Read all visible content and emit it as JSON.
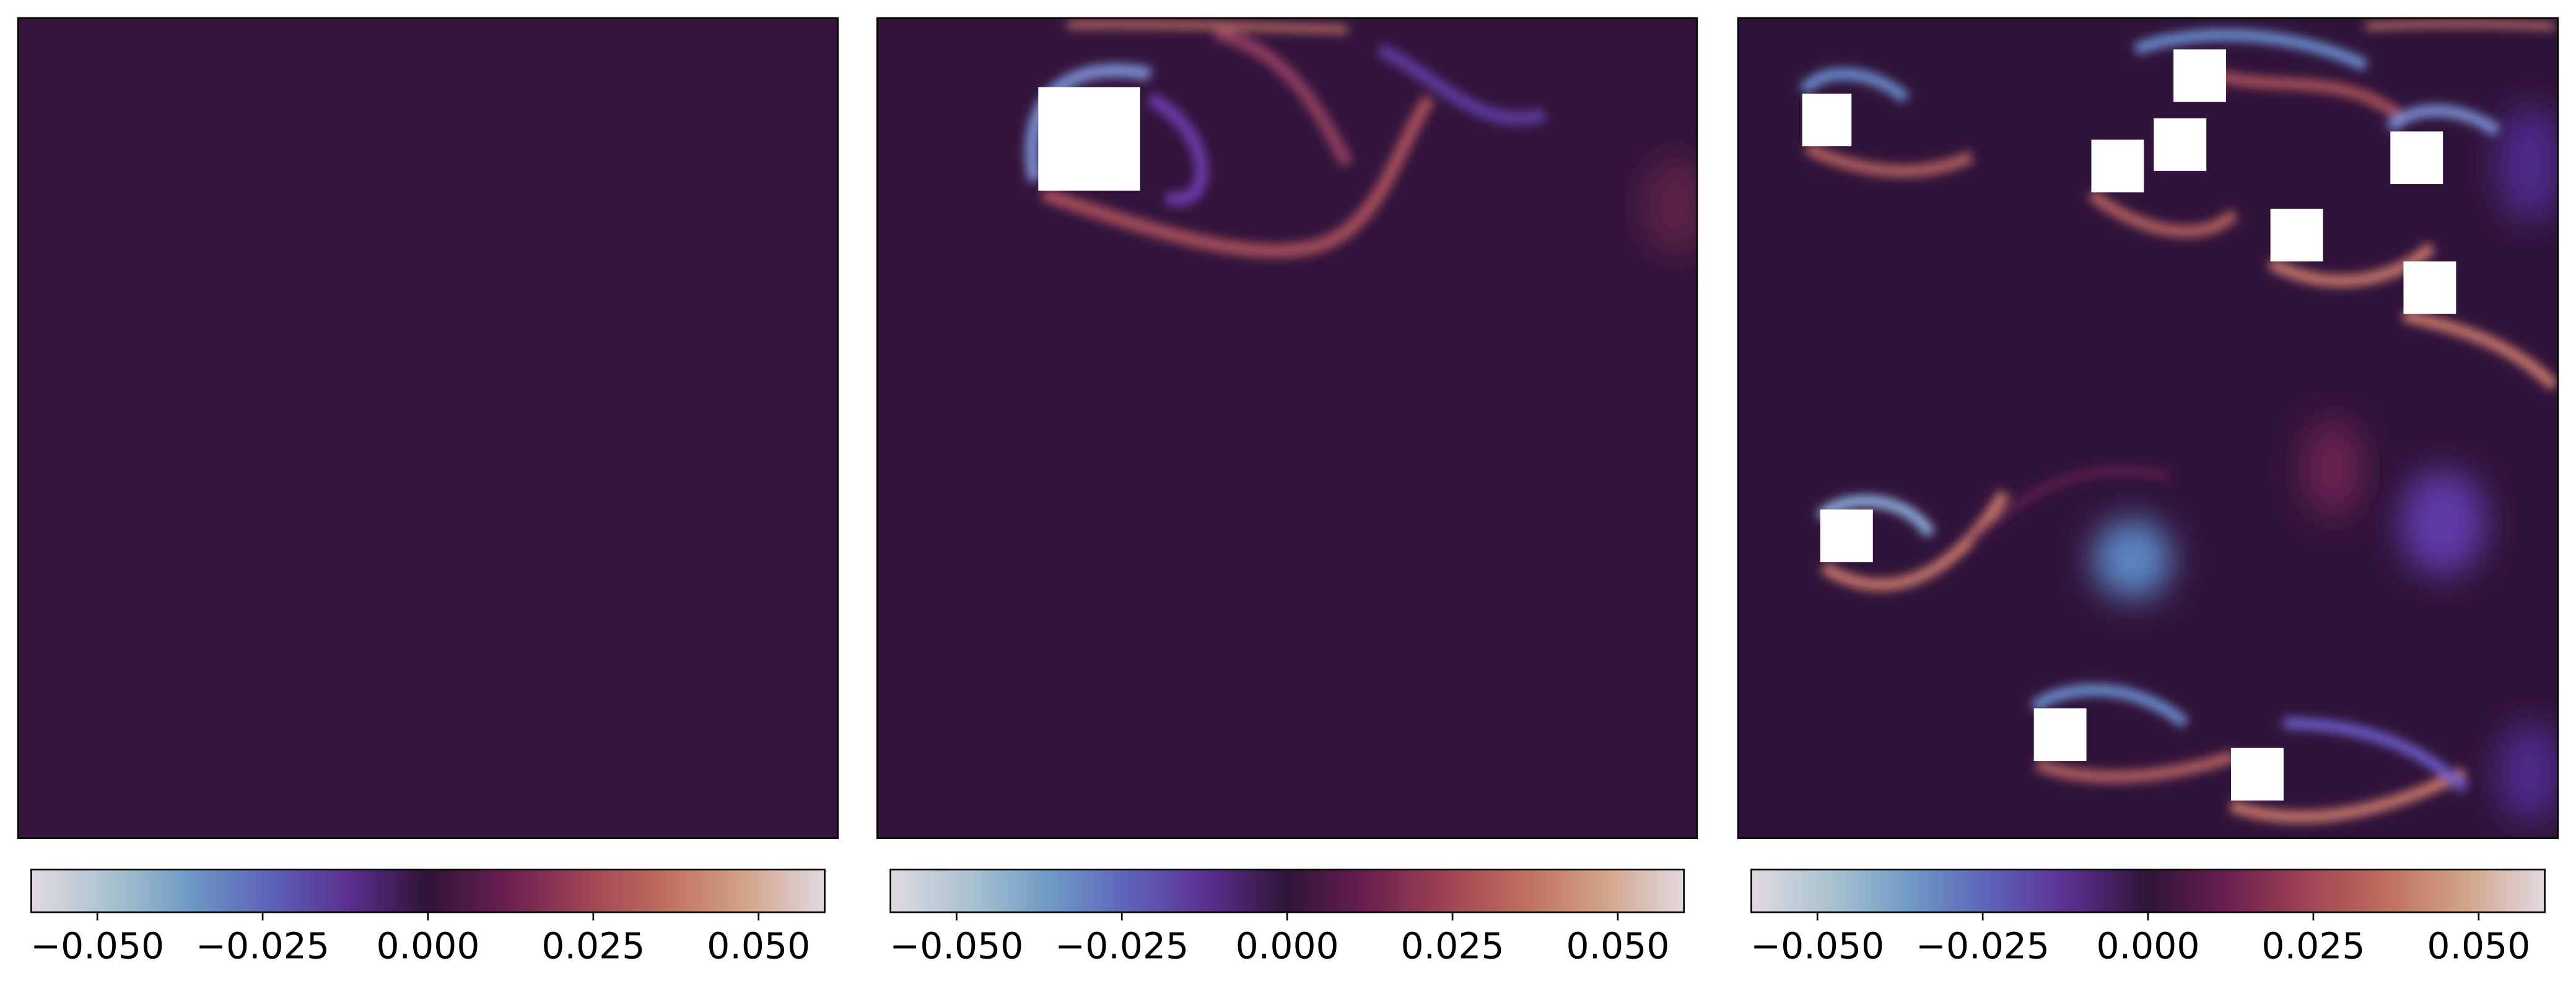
{
  "chart_data": [
    {
      "type": "heatmap",
      "colormap": "twilight_shifted",
      "clim": [
        -0.06,
        0.06
      ],
      "cticks": [
        {
          "value": -0.05,
          "label": "−0.050"
        },
        {
          "value": -0.025,
          "label": "−0.025"
        },
        {
          "value": 0,
          "label": "0.000"
        },
        {
          "value": 0.025,
          "label": "0.025"
        },
        {
          "value": 0.05,
          "label": "0.050"
        }
      ]
    },
    {
      "type": "heatmap",
      "colormap": "twilight_shifted",
      "clim": [
        -0.06,
        0.06
      ],
      "cticks": [
        {
          "value": -0.05,
          "label": "−0.050"
        },
        {
          "value": -0.025,
          "label": "−0.025"
        },
        {
          "value": 0,
          "label": "0.000"
        },
        {
          "value": 0.025,
          "label": "0.025"
        },
        {
          "value": 0.05,
          "label": "0.050"
        }
      ]
    },
    {
      "type": "heatmap",
      "colormap": "twilight_shifted",
      "clim": [
        -0.06,
        0.06
      ],
      "cticks": [
        {
          "value": -0.05,
          "label": "−0.050"
        },
        {
          "value": -0.025,
          "label": "−0.025"
        },
        {
          "value": 0,
          "label": "0.000"
        },
        {
          "value": 0.025,
          "label": "0.025"
        },
        {
          "value": 0.05,
          "label": "0.050"
        }
      ]
    }
  ]
}
